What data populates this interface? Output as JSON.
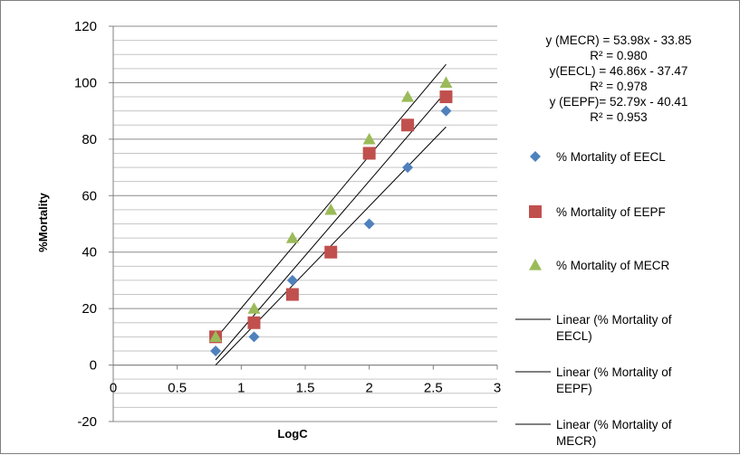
{
  "chart_data": {
    "type": "scatter",
    "xlabel": "LogC",
    "ylabel": "%Mortality",
    "xlim": [
      0,
      3
    ],
    "ylim": [
      -20,
      120
    ],
    "x_ticks": [
      "0",
      "0.5",
      "1",
      "1.5",
      "2",
      "2.5",
      "3"
    ],
    "y_ticks": [
      "-20",
      "0",
      "20",
      "40",
      "60",
      "80",
      "100",
      "120"
    ],
    "grid": "horizontal major and minor",
    "legend_position": "right",
    "series": [
      {
        "name": "% Mortality of  EECL",
        "marker": "diamond",
        "color": "#4f81bd",
        "x": [
          0.8,
          1.1,
          1.4,
          2.0,
          2.3,
          2.6
        ],
        "y": [
          5,
          10,
          30,
          50,
          70,
          90
        ]
      },
      {
        "name": "% Mortality of  EEPF",
        "marker": "square",
        "color": "#c0504d",
        "x": [
          0.8,
          1.1,
          1.4,
          1.7,
          2.0,
          2.3,
          2.6
        ],
        "y": [
          10,
          15,
          25,
          40,
          75,
          85,
          95
        ]
      },
      {
        "name": "% Mortality of  MECR",
        "marker": "triangle",
        "color": "#9bbb59",
        "x": [
          0.8,
          1.1,
          1.4,
          1.7,
          2.0,
          2.3,
          2.6
        ],
        "y": [
          10,
          20,
          45,
          55,
          80,
          95,
          100
        ]
      }
    ],
    "trendlines": [
      {
        "name": "Linear (% Mortality of EECL)",
        "slope": 46.86,
        "intercept": -37.47,
        "x_range": [
          0.8,
          2.6
        ],
        "color": "#000000"
      },
      {
        "name": "Linear (% Mortality of EEPF)",
        "slope": 52.79,
        "intercept": -40.41,
        "x_range": [
          0.8,
          2.6
        ],
        "color": "#000000"
      },
      {
        "name": "Linear (% Mortality of MECR)",
        "slope": 53.98,
        "intercept": -33.85,
        "x_range": [
          0.8,
          2.6
        ],
        "color": "#000000"
      }
    ],
    "equations": [
      "y (MECR) = 53.98x - 33.85",
      "R² = 0.980",
      "y(EECL) = 46.86x - 37.47",
      "R² = 0.978",
      "y (EEPF)= 52.79x - 40.41",
      "R² = 0.953"
    ],
    "legend": [
      {
        "label": "% Mortality of  EECL",
        "kind": "marker",
        "marker": "diamond",
        "color": "#4f81bd"
      },
      {
        "label": "% Mortality of  EEPF",
        "kind": "marker",
        "marker": "square",
        "color": "#c0504d"
      },
      {
        "label": "% Mortality of  MECR",
        "kind": "marker",
        "marker": "triangle",
        "color": "#9bbb59"
      },
      {
        "label_lines": [
          "Linear (% Mortality of",
          "EECL)"
        ],
        "kind": "line",
        "color": "#000000"
      },
      {
        "label_lines": [
          "Linear (% Mortality of",
          "EEPF)"
        ],
        "kind": "line",
        "color": "#000000"
      },
      {
        "label_lines": [
          "Linear (% Mortality of",
          "MECR)"
        ],
        "kind": "line",
        "color": "#000000"
      }
    ]
  }
}
